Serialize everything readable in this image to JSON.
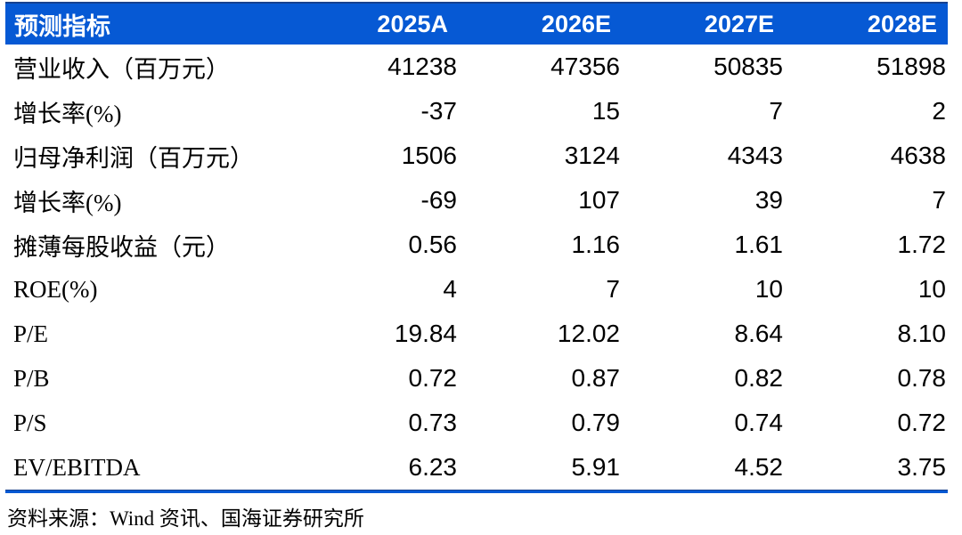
{
  "table": {
    "header": {
      "label": "预测指标",
      "columns": [
        "2025A",
        "2026E",
        "2027E",
        "2028E"
      ]
    },
    "rows": [
      {
        "label": "营业收入（百万元）",
        "values": [
          "41238",
          "47356",
          "50835",
          "51898"
        ]
      },
      {
        "label": "增长率(%)",
        "values": [
          "-37",
          "15",
          "7",
          "2"
        ]
      },
      {
        "label": "归母净利润（百万元）",
        "values": [
          "1506",
          "3124",
          "4343",
          "4638"
        ]
      },
      {
        "label": "增长率(%)",
        "values": [
          "-69",
          "107",
          "39",
          "7"
        ]
      },
      {
        "label": "摊薄每股收益（元）",
        "values": [
          "0.56",
          "1.16",
          "1.61",
          "1.72"
        ]
      },
      {
        "label": "ROE(%)",
        "values": [
          "4",
          "7",
          "10",
          "10"
        ]
      },
      {
        "label": "P/E",
        "values": [
          "19.84",
          "12.02",
          "8.64",
          "8.10"
        ]
      },
      {
        "label": "P/B",
        "values": [
          "0.72",
          "0.87",
          "0.82",
          "0.78"
        ]
      },
      {
        "label": "P/S",
        "values": [
          "0.73",
          "0.79",
          "0.74",
          "0.72"
        ]
      },
      {
        "label": "EV/EBITDA",
        "values": [
          "6.23",
          "5.91",
          "4.52",
          "3.75"
        ]
      }
    ],
    "source_note": "资料来源：Wind 资讯、国海证券研究所",
    "colors": {
      "header_bg": "#0659D4",
      "header_text": "#FFFFFF",
      "body_text": "#000000",
      "rule_blue": "#0659D4",
      "rule_dark": "#16418F"
    }
  }
}
